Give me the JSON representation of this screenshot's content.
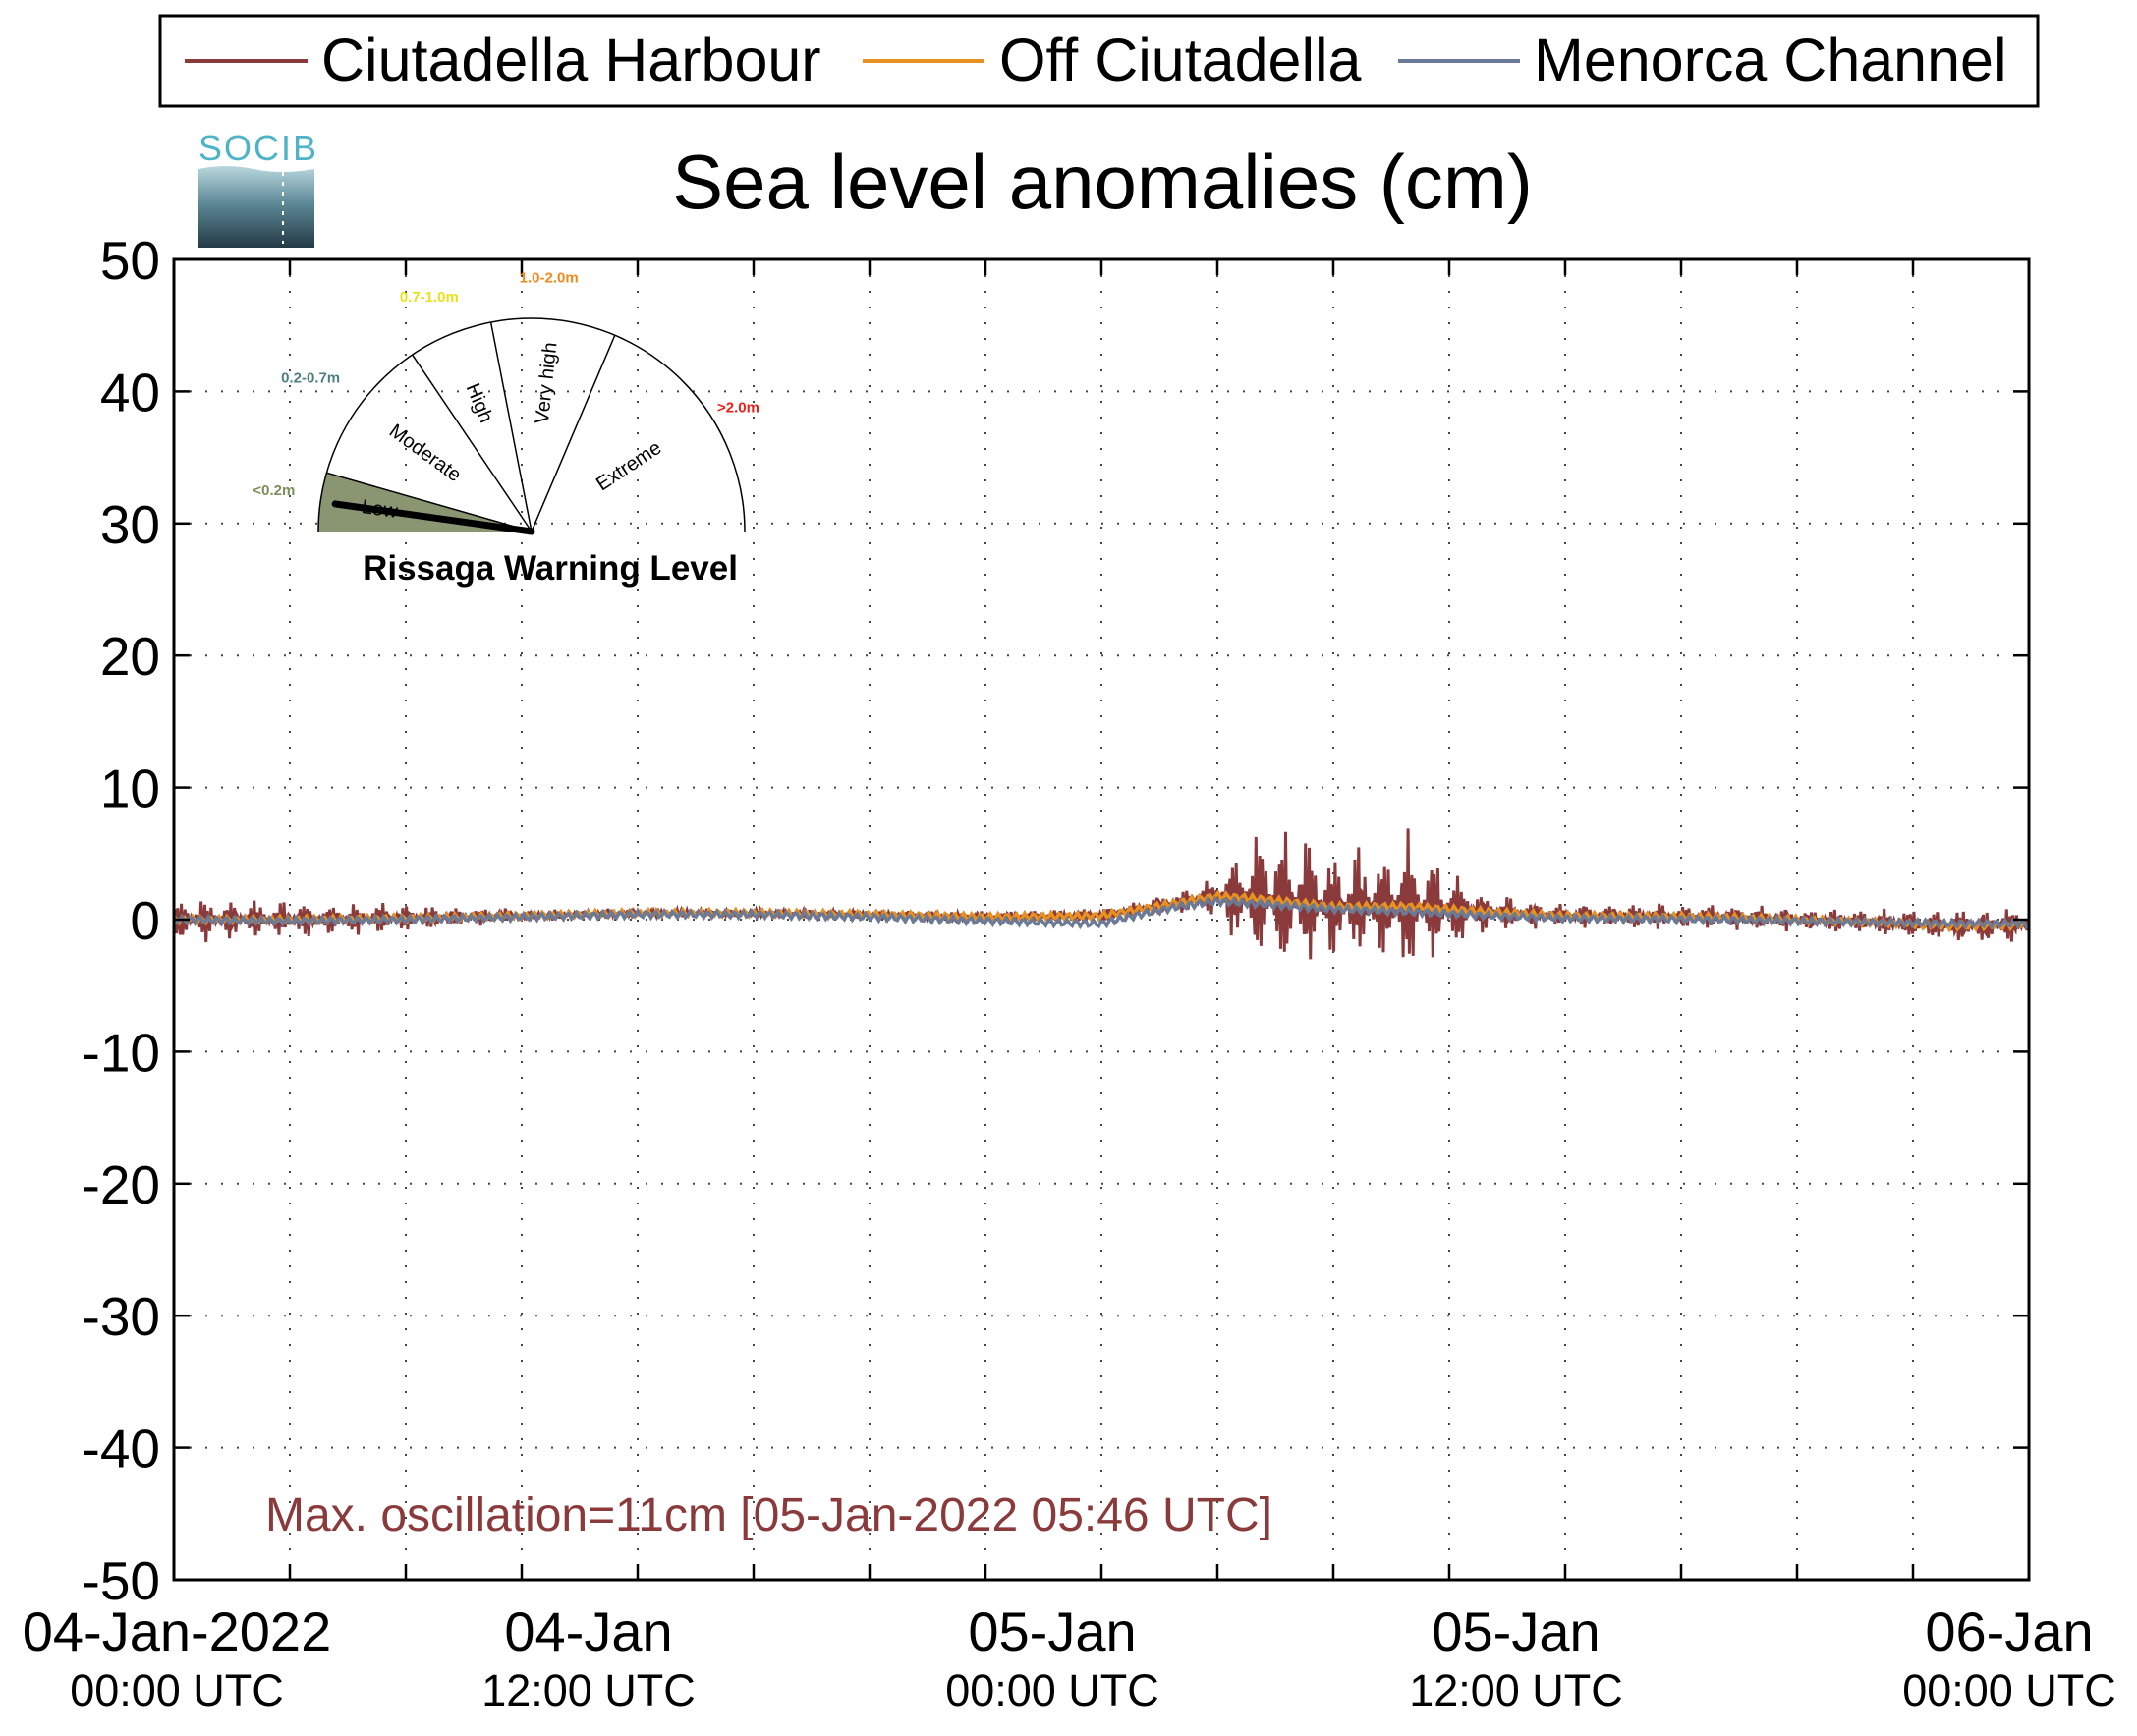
{
  "chart_data": {
    "type": "line",
    "title": "Sea level anomalies (cm)",
    "ylim": [
      -50,
      50
    ],
    "yticks": [
      "50",
      "40",
      "30",
      "20",
      "10",
      "0",
      "-10",
      "-20",
      "-30",
      "-40",
      "-50"
    ],
    "xlim_hours": [
      0,
      48
    ],
    "xticks": [
      {
        "line1": "04-Jan-2022",
        "line2": "00:00 UTC"
      },
      {
        "line1": "04-Jan",
        "line2": "12:00 UTC"
      },
      {
        "line1": "05-Jan",
        "line2": "00:00 UTC"
      },
      {
        "line1": "05-Jan",
        "line2": "12:00 UTC"
      },
      {
        "line1": "06-Jan",
        "line2": "00:00 UTC"
      }
    ],
    "grid": true,
    "legend_position": "top",
    "series": [
      {
        "name": "Ciutadella Harbour",
        "color": "#8b3a3c",
        "x": [
          0,
          1,
          3,
          6,
          9,
          12,
          15,
          18,
          21,
          24,
          26,
          27,
          28,
          29,
          30,
          31,
          32,
          33,
          34,
          36,
          38,
          40,
          42,
          44,
          46,
          48
        ],
        "amp": [
          1.6,
          1.4,
          1.3,
          1.0,
          0.4,
          0.3,
          0.3,
          0.3,
          0.4,
          0.5,
          0.7,
          1.5,
          4.5,
          5.2,
          3.4,
          4.3,
          4.8,
          3.0,
          1.3,
          0.8,
          0.9,
          0.9,
          0.8,
          0.9,
          1.2,
          1.3
        ]
      },
      {
        "name": "Off Ciutadella",
        "color": "#e69121",
        "x": [
          0,
          3,
          6,
          9,
          12,
          15,
          18,
          21,
          24,
          25,
          26,
          27,
          28,
          30,
          32,
          34,
          36,
          40,
          44,
          46,
          48
        ],
        "y": [
          0,
          0.0,
          0.1,
          0.3,
          0.5,
          0.5,
          0.4,
          0.2,
          0.3,
          0.8,
          1.3,
          1.8,
          1.6,
          1.0,
          1.0,
          0.6,
          0.3,
          0.2,
          -0.2,
          -0.5,
          -0.4
        ]
      },
      {
        "name": "Menorca Channel",
        "color": "#6b7a96",
        "x": [
          0,
          3,
          6,
          9,
          12,
          15,
          18,
          21,
          24,
          25,
          26,
          27,
          28,
          30,
          32,
          34,
          36,
          40,
          44,
          46,
          48
        ],
        "y": [
          0,
          -0.1,
          0.0,
          0.2,
          0.4,
          0.4,
          0.2,
          -0.1,
          -0.3,
          0.4,
          1.0,
          1.4,
          1.2,
          0.8,
          0.6,
          0.3,
          0.1,
          0.0,
          -0.2,
          -0.3,
          -0.3
        ]
      }
    ],
    "annotation": "Max. oscillation=11cm [05-Jan-2022 05:46 UTC]",
    "annotation_color": "#8b3a3c"
  },
  "logo": {
    "text": "SOCIB"
  },
  "gauge": {
    "title": "Rissaga Warning Level",
    "current_level": "Low",
    "segments": [
      {
        "label": "Low",
        "range": "<0.2m",
        "range_color": "#7d8f5a"
      },
      {
        "label": "Moderate",
        "range": "0.2-0.7m",
        "range_color": "#4e7f80"
      },
      {
        "label": "High",
        "range": "0.7-1.0m",
        "range_color": "#e8e21a"
      },
      {
        "label": "Very high",
        "range": "1.0-2.0m",
        "range_color": "#f08a1c"
      },
      {
        "label": "Extreme",
        "range": ">2.0m",
        "range_color": "#e8201c"
      }
    ]
  }
}
